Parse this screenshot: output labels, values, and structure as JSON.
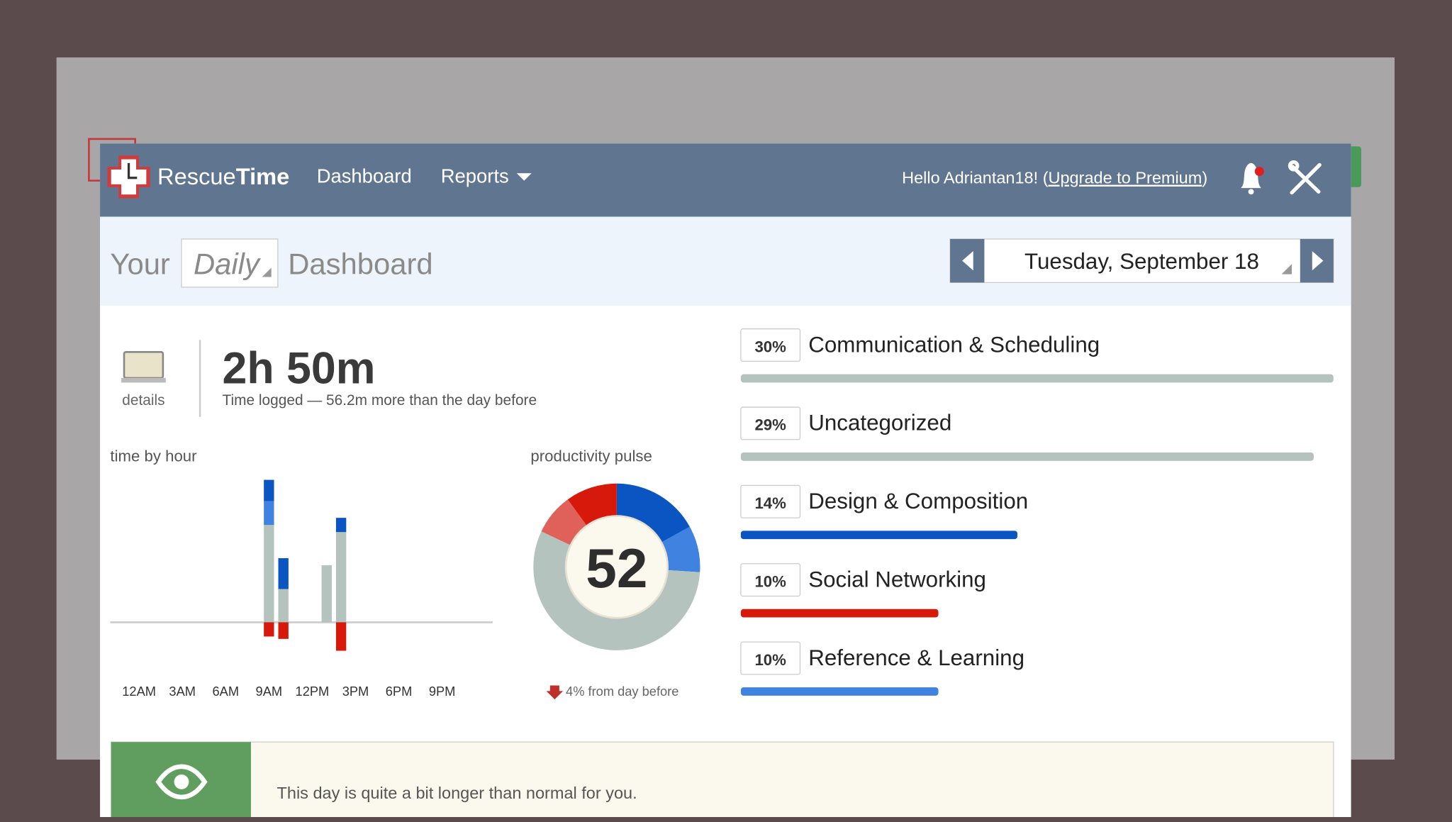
{
  "nav": {
    "brand_a": "Rescue",
    "brand_b": "Time",
    "links": [
      "Dashboard",
      "Reports"
    ],
    "greeting": "Hello Adriantan18! (",
    "upgrade": "Upgrade to Premium",
    "greeting_end": ")"
  },
  "header": {
    "your": "Your",
    "period": "Daily",
    "dashboard": "Dashboard",
    "date": "Tuesday, September 18"
  },
  "summary": {
    "details": "details",
    "total": "2h 50m",
    "note": "Time logged — 56.2m more than the day before"
  },
  "chart_data": [
    {
      "type": "bar",
      "stacked": true,
      "title": "time by hour",
      "x": [
        0,
        1,
        2,
        3,
        4,
        5,
        6,
        7,
        8,
        9,
        10,
        11,
        12,
        13,
        14,
        15,
        16,
        17,
        18,
        19,
        20,
        21,
        22,
        23
      ],
      "series": [
        {
          "color": "#b4c3bd",
          "values": [
            0,
            0,
            0,
            0,
            0,
            0,
            0,
            0,
            0,
            41,
            14,
            0,
            0,
            24,
            38,
            0,
            0,
            0,
            0,
            0,
            0,
            0,
            0,
            0
          ]
        },
        {
          "color": "#3f82e0",
          "values": [
            0,
            0,
            0,
            0,
            0,
            0,
            0,
            0,
            0,
            10,
            0,
            0,
            0,
            0,
            0,
            0,
            0,
            0,
            0,
            0,
            0,
            0,
            0,
            0
          ]
        },
        {
          "color": "#0a55c2",
          "values": [
            0,
            0,
            0,
            0,
            0,
            0,
            0,
            0,
            0,
            9,
            13,
            0,
            0,
            0,
            6,
            0,
            0,
            0,
            0,
            0,
            0,
            0,
            0,
            0
          ]
        },
        {
          "color": "#d7190c",
          "values": [
            0,
            0,
            0,
            0,
            0,
            0,
            0,
            0,
            0,
            -6,
            -7,
            0,
            0,
            0,
            -12,
            0,
            0,
            0,
            0,
            0,
            0,
            0,
            0,
            0
          ]
        }
      ],
      "xlim": [
        -2,
        24.5
      ],
      "ylim": [
        -20,
        60
      ],
      "xticks": [
        {
          "value": 0,
          "label": "12AM"
        },
        {
          "value": 3,
          "label": "3AM"
        },
        {
          "value": 6,
          "label": "6AM"
        },
        {
          "value": 9,
          "label": "9AM"
        },
        {
          "value": 12,
          "label": "12PM"
        },
        {
          "value": 15,
          "label": "3PM"
        },
        {
          "value": 18,
          "label": "6PM"
        },
        {
          "value": 21,
          "label": "9PM"
        }
      ]
    },
    {
      "type": "pie",
      "donut": true,
      "title": "productivity pulse",
      "pulse": 52,
      "values": [
        17,
        9,
        56,
        8,
        10
      ],
      "colors": [
        "#0a55c2",
        "#3f82e0",
        "#b4c3bd",
        "#e0605a",
        "#d7190c"
      ],
      "note": "4% from day before"
    },
    {
      "type": "bar",
      "orientation": "horizontal",
      "categories": [
        "Communication & Scheduling",
        "Uncategorized",
        "Design & Composition",
        "Social Networking",
        "Reference & Learning"
      ],
      "values": [
        30,
        29,
        14,
        10,
        10
      ],
      "value_labels": [
        "30%",
        "29%",
        "14%",
        "10%",
        "10%"
      ],
      "colors": [
        "#b4c3bd",
        "#b4c3bd",
        "#0a55c2",
        "#d7190c",
        "#3f82e0"
      ],
      "xlim": [
        0,
        30
      ]
    }
  ],
  "alert": {
    "text": "This day is quite a bit longer than normal for you."
  }
}
